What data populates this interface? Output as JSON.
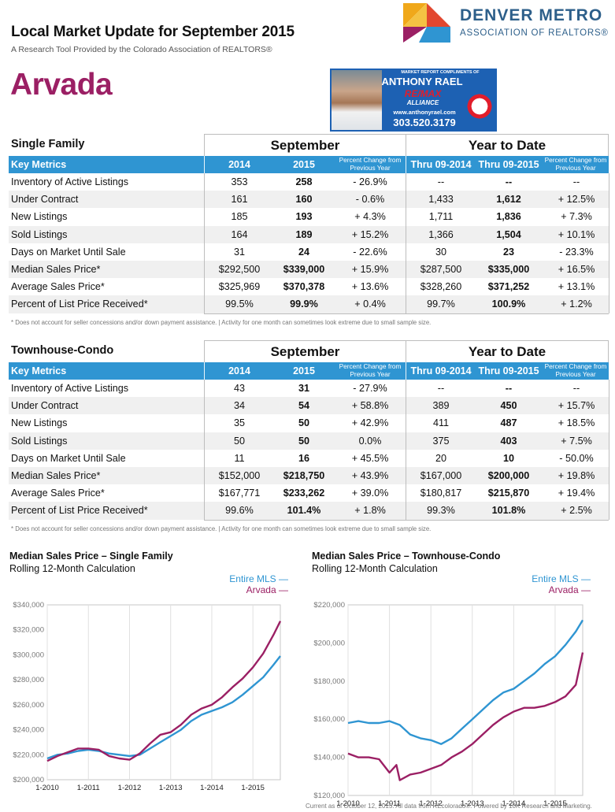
{
  "header": {
    "title": "Local Market Update for September 2015",
    "subtitle": "A Research Tool Provided by the Colorado Association of REALTORS®",
    "city": "Arvada"
  },
  "logo": {
    "line1": "DENVER METRO",
    "line2": "ASSOCIATION OF REALTORS®",
    "colors": [
      "#f0a81a",
      "#e2472f",
      "#9b1f64",
      "#2f95d2"
    ]
  },
  "agent": {
    "tagline": "MARKET REPORT COMPLIMENTS OF",
    "name": "ANTHONY RAEL",
    "brand": "RE/MAX",
    "brand_sub": "ALLIANCE",
    "website": "www.anthonyrael.com",
    "phone": "303.520.3179"
  },
  "tables": [
    {
      "section": "Single Family",
      "period1": "September",
      "period2": "Year to Date",
      "columns": {
        "metric": "Key Metrics",
        "c1": "2014",
        "c2": "2015",
        "c3": "Percent Change from Previous Year",
        "c4": "Thru 09-2014",
        "c5": "Thru 09-2015",
        "c6": "Percent Change from Previous Year"
      },
      "rows": [
        {
          "label": "Inventory of Active Listings",
          "v": [
            "353",
            "258",
            "- 26.9%",
            "--",
            "--",
            "--"
          ]
        },
        {
          "label": "Under Contract",
          "v": [
            "161",
            "160",
            "- 0.6%",
            "1,433",
            "1,612",
            "+ 12.5%"
          ]
        },
        {
          "label": "New Listings",
          "v": [
            "185",
            "193",
            "+ 4.3%",
            "1,711",
            "1,836",
            "+ 7.3%"
          ]
        },
        {
          "label": "Sold Listings",
          "v": [
            "164",
            "189",
            "+ 15.2%",
            "1,366",
            "1,504",
            "+ 10.1%"
          ]
        },
        {
          "label": "Days on Market Until Sale",
          "v": [
            "31",
            "24",
            "- 22.6%",
            "30",
            "23",
            "- 23.3%"
          ]
        },
        {
          "label": "Median Sales Price*",
          "v": [
            "$292,500",
            "$339,000",
            "+ 15.9%",
            "$287,500",
            "$335,000",
            "+ 16.5%"
          ]
        },
        {
          "label": "Average Sales Price*",
          "v": [
            "$325,969",
            "$370,378",
            "+ 13.6%",
            "$328,260",
            "$371,252",
            "+ 13.1%"
          ]
        },
        {
          "label": "Percent of List Price Received*",
          "v": [
            "99.5%",
            "99.9%",
            "+ 0.4%",
            "99.7%",
            "100.9%",
            "+ 1.2%"
          ]
        }
      ],
      "footnote": "* Does not account for seller concessions and/or down payment assistance.  |  Activity for one month can sometimes look extreme due to small sample size."
    },
    {
      "section": "Townhouse-Condo",
      "period1": "September",
      "period2": "Year to Date",
      "columns": {
        "metric": "Key Metrics",
        "c1": "2014",
        "c2": "2015",
        "c3": "Percent Change from Previous Year",
        "c4": "Thru 09-2014",
        "c5": "Thru 09-2015",
        "c6": "Percent Change from Previous Year"
      },
      "rows": [
        {
          "label": "Inventory of Active Listings",
          "v": [
            "43",
            "31",
            "- 27.9%",
            "--",
            "--",
            "--"
          ]
        },
        {
          "label": "Under Contract",
          "v": [
            "34",
            "54",
            "+ 58.8%",
            "389",
            "450",
            "+ 15.7%"
          ]
        },
        {
          "label": "New Listings",
          "v": [
            "35",
            "50",
            "+ 42.9%",
            "411",
            "487",
            "+ 18.5%"
          ]
        },
        {
          "label": "Sold Listings",
          "v": [
            "50",
            "50",
            "0.0%",
            "375",
            "403",
            "+ 7.5%"
          ]
        },
        {
          "label": "Days on Market Until Sale",
          "v": [
            "11",
            "16",
            "+ 45.5%",
            "20",
            "10",
            "- 50.0%"
          ]
        },
        {
          "label": "Median Sales Price*",
          "v": [
            "$152,000",
            "$218,750",
            "+ 43.9%",
            "$167,000",
            "$200,000",
            "+ 19.8%"
          ]
        },
        {
          "label": "Average Sales Price*",
          "v": [
            "$167,771",
            "$233,262",
            "+ 39.0%",
            "$180,817",
            "$215,870",
            "+ 19.4%"
          ]
        },
        {
          "label": "Percent of List Price Received*",
          "v": [
            "99.6%",
            "101.4%",
            "+ 1.8%",
            "99.3%",
            "101.8%",
            "+ 2.5%"
          ]
        }
      ],
      "footnote": "* Does not account for seller concessions and/or down payment assistance.  |  Activity for one month can sometimes look extreme due to small sample size."
    }
  ],
  "chart_data": [
    {
      "type": "line",
      "title": "Median Sales Price – Single Family",
      "subtitle": "Rolling 12-Month Calculation",
      "x_ticks": [
        "1-2010",
        "1-2011",
        "1-2012",
        "1-2013",
        "1-2014",
        "1-2015"
      ],
      "y_ticks": [
        "$200,000",
        "$220,000",
        "$240,000",
        "$260,000",
        "$280,000",
        "$300,000",
        "$320,000",
        "$340,000"
      ],
      "ylim": [
        200000,
        340000
      ],
      "xlim": [
        "2010-01",
        "2015-09"
      ],
      "grid": "vertical",
      "legend": "top-right",
      "series": [
        {
          "name": "Entire MLS",
          "color": "#2f95d2",
          "points": [
            [
              "2010-01",
              217000
            ],
            [
              "2010-04",
              220000
            ],
            [
              "2010-07",
              221000
            ],
            [
              "2010-10",
              223000
            ],
            [
              "2011-01",
              224000
            ],
            [
              "2011-04",
              223000
            ],
            [
              "2011-07",
              221000
            ],
            [
              "2011-10",
              220000
            ],
            [
              "2012-01",
              219000
            ],
            [
              "2012-04",
              220000
            ],
            [
              "2012-07",
              225000
            ],
            [
              "2012-10",
              230000
            ],
            [
              "2013-01",
              235000
            ],
            [
              "2013-04",
              240000
            ],
            [
              "2013-07",
              247000
            ],
            [
              "2013-10",
              252000
            ],
            [
              "2014-01",
              255000
            ],
            [
              "2014-04",
              258000
            ],
            [
              "2014-07",
              262000
            ],
            [
              "2014-10",
              268000
            ],
            [
              "2015-01",
              275000
            ],
            [
              "2015-04",
              282000
            ],
            [
              "2015-07",
              292000
            ],
            [
              "2015-09",
              299000
            ]
          ]
        },
        {
          "name": "Arvada",
          "color": "#9b1f64",
          "points": [
            [
              "2010-01",
              215000
            ],
            [
              "2010-04",
              219000
            ],
            [
              "2010-07",
              222000
            ],
            [
              "2010-10",
              225000
            ],
            [
              "2011-01",
              225000
            ],
            [
              "2011-04",
              224000
            ],
            [
              "2011-07",
              219000
            ],
            [
              "2011-10",
              217000
            ],
            [
              "2012-01",
              216000
            ],
            [
              "2012-04",
              221000
            ],
            [
              "2012-07",
              229000
            ],
            [
              "2012-10",
              236000
            ],
            [
              "2013-01",
              238000
            ],
            [
              "2013-04",
              244000
            ],
            [
              "2013-07",
              252000
            ],
            [
              "2013-10",
              257000
            ],
            [
              "2014-01",
              260000
            ],
            [
              "2014-04",
              266000
            ],
            [
              "2014-07",
              274000
            ],
            [
              "2014-10",
              281000
            ],
            [
              "2015-01",
              290000
            ],
            [
              "2015-04",
              301000
            ],
            [
              "2015-07",
              316000
            ],
            [
              "2015-09",
              327000
            ]
          ]
        }
      ]
    },
    {
      "type": "line",
      "title": "Median Sales Price – Townhouse-Condo",
      "subtitle": "Rolling 12-Month Calculation",
      "x_ticks": [
        "1-2010",
        "1-2011",
        "1-2012",
        "1-2013",
        "1-2014",
        "1-2015"
      ],
      "y_ticks": [
        "$120,000",
        "$140,000",
        "$160,000",
        "$180,000",
        "$200,000",
        "$220,000"
      ],
      "ylim": [
        120000,
        220000
      ],
      "xlim": [
        "2010-01",
        "2015-09"
      ],
      "grid": "vertical",
      "legend": "top-right",
      "series": [
        {
          "name": "Entire MLS",
          "color": "#2f95d2",
          "points": [
            [
              "2010-01",
              158000
            ],
            [
              "2010-04",
              159000
            ],
            [
              "2010-07",
              158000
            ],
            [
              "2010-10",
              158000
            ],
            [
              "2011-01",
              159000
            ],
            [
              "2011-04",
              157000
            ],
            [
              "2011-07",
              152000
            ],
            [
              "2011-10",
              150000
            ],
            [
              "2012-01",
              149000
            ],
            [
              "2012-04",
              147000
            ],
            [
              "2012-07",
              150000
            ],
            [
              "2012-10",
              155000
            ],
            [
              "2013-01",
              160000
            ],
            [
              "2013-04",
              165000
            ],
            [
              "2013-07",
              170000
            ],
            [
              "2013-10",
              174000
            ],
            [
              "2014-01",
              176000
            ],
            [
              "2014-04",
              180000
            ],
            [
              "2014-07",
              184000
            ],
            [
              "2014-10",
              189000
            ],
            [
              "2015-01",
              193000
            ],
            [
              "2015-04",
              199000
            ],
            [
              "2015-07",
              206000
            ],
            [
              "2015-09",
              212000
            ]
          ]
        },
        {
          "name": "Arvada",
          "color": "#9b1f64",
          "points": [
            [
              "2010-01",
              142000
            ],
            [
              "2010-04",
              140000
            ],
            [
              "2010-07",
              140000
            ],
            [
              "2010-10",
              139000
            ],
            [
              "2011-01",
              132000
            ],
            [
              "2011-03",
              136000
            ],
            [
              "2011-04",
              128000
            ],
            [
              "2011-07",
              131000
            ],
            [
              "2011-10",
              132000
            ],
            [
              "2012-01",
              134000
            ],
            [
              "2012-04",
              136000
            ],
            [
              "2012-07",
              140000
            ],
            [
              "2012-10",
              143000
            ],
            [
              "2013-01",
              147000
            ],
            [
              "2013-04",
              152000
            ],
            [
              "2013-07",
              157000
            ],
            [
              "2013-10",
              161000
            ],
            [
              "2014-01",
              164000
            ],
            [
              "2014-04",
              166000
            ],
            [
              "2014-07",
              166000
            ],
            [
              "2014-10",
              167000
            ],
            [
              "2015-01",
              169000
            ],
            [
              "2015-04",
              172000
            ],
            [
              "2015-07",
              178000
            ],
            [
              "2015-09",
              195000
            ]
          ]
        }
      ]
    }
  ],
  "footer": "Current as of October 12, 2015. All data from REcolorado®. Powered by 10K Research and Marketing."
}
